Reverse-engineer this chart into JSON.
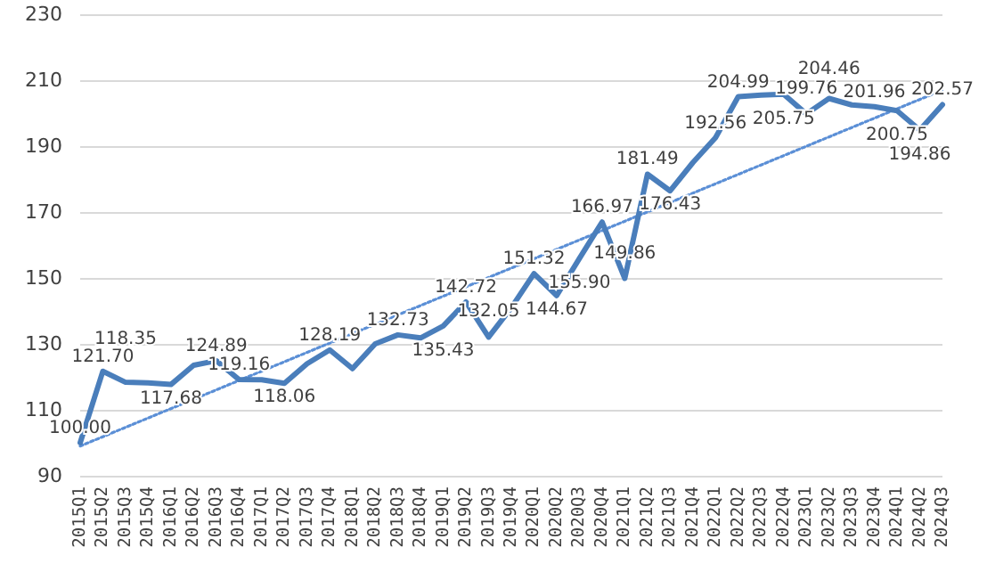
{
  "chart_data": {
    "type": "line",
    "categories": [
      "2015Q1",
      "2015Q2",
      "2015Q3",
      "2015Q4",
      "2016Q1",
      "2016Q2",
      "2016Q3",
      "2016Q4",
      "2017Q1",
      "2017Q2",
      "2017Q3",
      "2017Q4",
      "2018Q1",
      "2018Q2",
      "2018Q3",
      "2018Q4",
      "2019Q1",
      "2019Q2",
      "2019Q3",
      "2019Q4",
      "2020Q1",
      "2020Q2",
      "2020Q3",
      "2020Q4",
      "2021Q1",
      "2021Q2",
      "2021Q3",
      "2021Q4",
      "2022Q1",
      "2022Q2",
      "2022Q3",
      "2022Q4",
      "2023Q1",
      "2023Q2",
      "2023Q3",
      "2023Q4",
      "2024Q1",
      "2024Q2",
      "2024Q3"
    ],
    "series": [
      {
        "color": "#4a7ebb",
        "line_style": "solid",
        "values": [
          100.0,
          121.7,
          118.35,
          118.2,
          117.68,
          123.5,
          124.89,
          119.16,
          119.1,
          118.06,
          124,
          128.19,
          122.5,
          130,
          132.73,
          131.8,
          135.43,
          142.72,
          132.05,
          141,
          151.32,
          144.67,
          155.9,
          166.97,
          149.86,
          181.49,
          176.43,
          185,
          192.56,
          204.99,
          205.5,
          205.75,
          199.76,
          204.46,
          202.5,
          201.96,
          200.75,
          194.86,
          202.57
        ],
        "value_labels": [
          "100.00",
          "121.70",
          "118.35",
          null,
          "117.68",
          null,
          "124.89",
          "119.16",
          null,
          "118.06",
          null,
          "128.19",
          null,
          null,
          "132.73",
          null,
          "135.43",
          "142.72",
          "132.05",
          null,
          "151.32",
          "144.67",
          "155.90",
          "166.97",
          "149.86",
          "181.49",
          "176.43",
          null,
          "192.56",
          "204.99",
          null,
          "205.75",
          "199.76",
          "204.46",
          null,
          "201.96",
          "200.75",
          "194.86",
          "202.57"
        ]
      },
      {
        "color": "#5b8fd6",
        "line_style": "dotted",
        "x": [
          "2015Q1",
          "2024Q3"
        ],
        "values": [
          99,
          207
        ]
      }
    ],
    "ylim": [
      90,
      230
    ],
    "yticks": [
      90,
      110,
      130,
      150,
      170,
      190,
      210,
      230
    ],
    "grid": "y"
  }
}
